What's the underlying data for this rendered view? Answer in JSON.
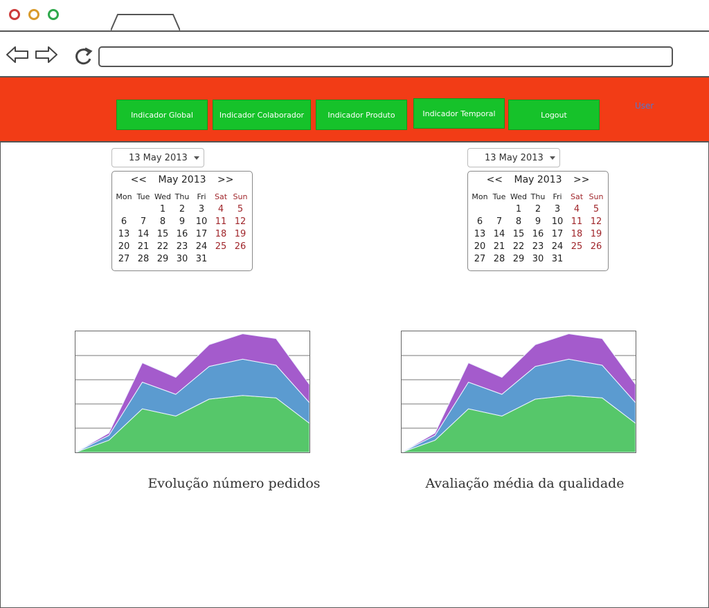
{
  "browser": {
    "url": "",
    "dots": [
      "#cc3b3b",
      "#d99a2b",
      "#2ea84b"
    ]
  },
  "menu": {
    "items": [
      {
        "label": "Indicador Global"
      },
      {
        "label": "Indicador Colaborador"
      },
      {
        "label": "Indicador Produto"
      },
      {
        "label": "Indicador Temporal"
      },
      {
        "label": "Logout"
      }
    ],
    "user_label": "User",
    "colors": {
      "header": "#f23c16",
      "button": "#16c22a"
    }
  },
  "left_panel": {
    "date_value": "13 May 2013",
    "calendar": {
      "month_label": "May 2013",
      "prev_label": "<<",
      "next_label": ">>",
      "weekdays": [
        "Mon",
        "Tue",
        "Wed",
        "Thu",
        "Fri",
        "Sat",
        "Sun"
      ],
      "days": [
        "",
        "",
        "1",
        "2",
        "3",
        "4",
        "5",
        "6",
        "7",
        "8",
        "9",
        "10",
        "11",
        "12",
        "13",
        "14",
        "15",
        "16",
        "17",
        "18",
        "19",
        "20",
        "21",
        "22",
        "23",
        "24",
        "25",
        "26",
        "27",
        "28",
        "29",
        "30",
        "31",
        "",
        "",
        ""
      ]
    },
    "caption": "Evolução número pedidos"
  },
  "right_panel": {
    "date_value": "13 May 2013",
    "calendar": {
      "month_label": "May 2013",
      "prev_label": "<<",
      "next_label": ">>",
      "weekdays": [
        "Mon",
        "Tue",
        "Wed",
        "Thu",
        "Fri",
        "Sat",
        "Sun"
      ],
      "days": [
        "",
        "",
        "1",
        "2",
        "3",
        "4",
        "5",
        "6",
        "7",
        "8",
        "9",
        "10",
        "11",
        "12",
        "13",
        "14",
        "15",
        "16",
        "17",
        "18",
        "19",
        "20",
        "21",
        "22",
        "23",
        "24",
        "25",
        "26",
        "27",
        "28",
        "29",
        "30",
        "31",
        "",
        "",
        ""
      ]
    },
    "caption": "Avaliação média da qualidade"
  },
  "chart_data": [
    {
      "type": "area",
      "stacked": true,
      "x": [
        0,
        1,
        2,
        3,
        4,
        5,
        6,
        7
      ],
      "ylim": [
        0,
        5
      ],
      "grid": true,
      "series": [
        {
          "color": "#56c76a",
          "values": [
            0.0,
            0.5,
            1.8,
            1.5,
            2.2,
            2.35,
            2.25,
            1.2
          ]
        },
        {
          "color": "#5b9bd0",
          "values": [
            0.0,
            0.2,
            1.1,
            0.9,
            1.35,
            1.5,
            1.35,
            0.85
          ]
        },
        {
          "color": "#a45bcc",
          "values": [
            0.0,
            0.1,
            0.8,
            0.7,
            0.9,
            1.05,
            1.1,
            0.75
          ]
        }
      ]
    },
    {
      "type": "area",
      "stacked": true,
      "x": [
        0,
        1,
        2,
        3,
        4,
        5,
        6,
        7
      ],
      "ylim": [
        0,
        5
      ],
      "grid": true,
      "series": [
        {
          "color": "#56c76a",
          "values": [
            0.0,
            0.5,
            1.8,
            1.5,
            2.2,
            2.35,
            2.25,
            1.2
          ]
        },
        {
          "color": "#5b9bd0",
          "values": [
            0.0,
            0.2,
            1.1,
            0.9,
            1.35,
            1.5,
            1.35,
            0.85
          ]
        },
        {
          "color": "#a45bcc",
          "values": [
            0.0,
            0.1,
            0.8,
            0.7,
            0.9,
            1.05,
            1.1,
            0.75
          ]
        }
      ]
    }
  ]
}
